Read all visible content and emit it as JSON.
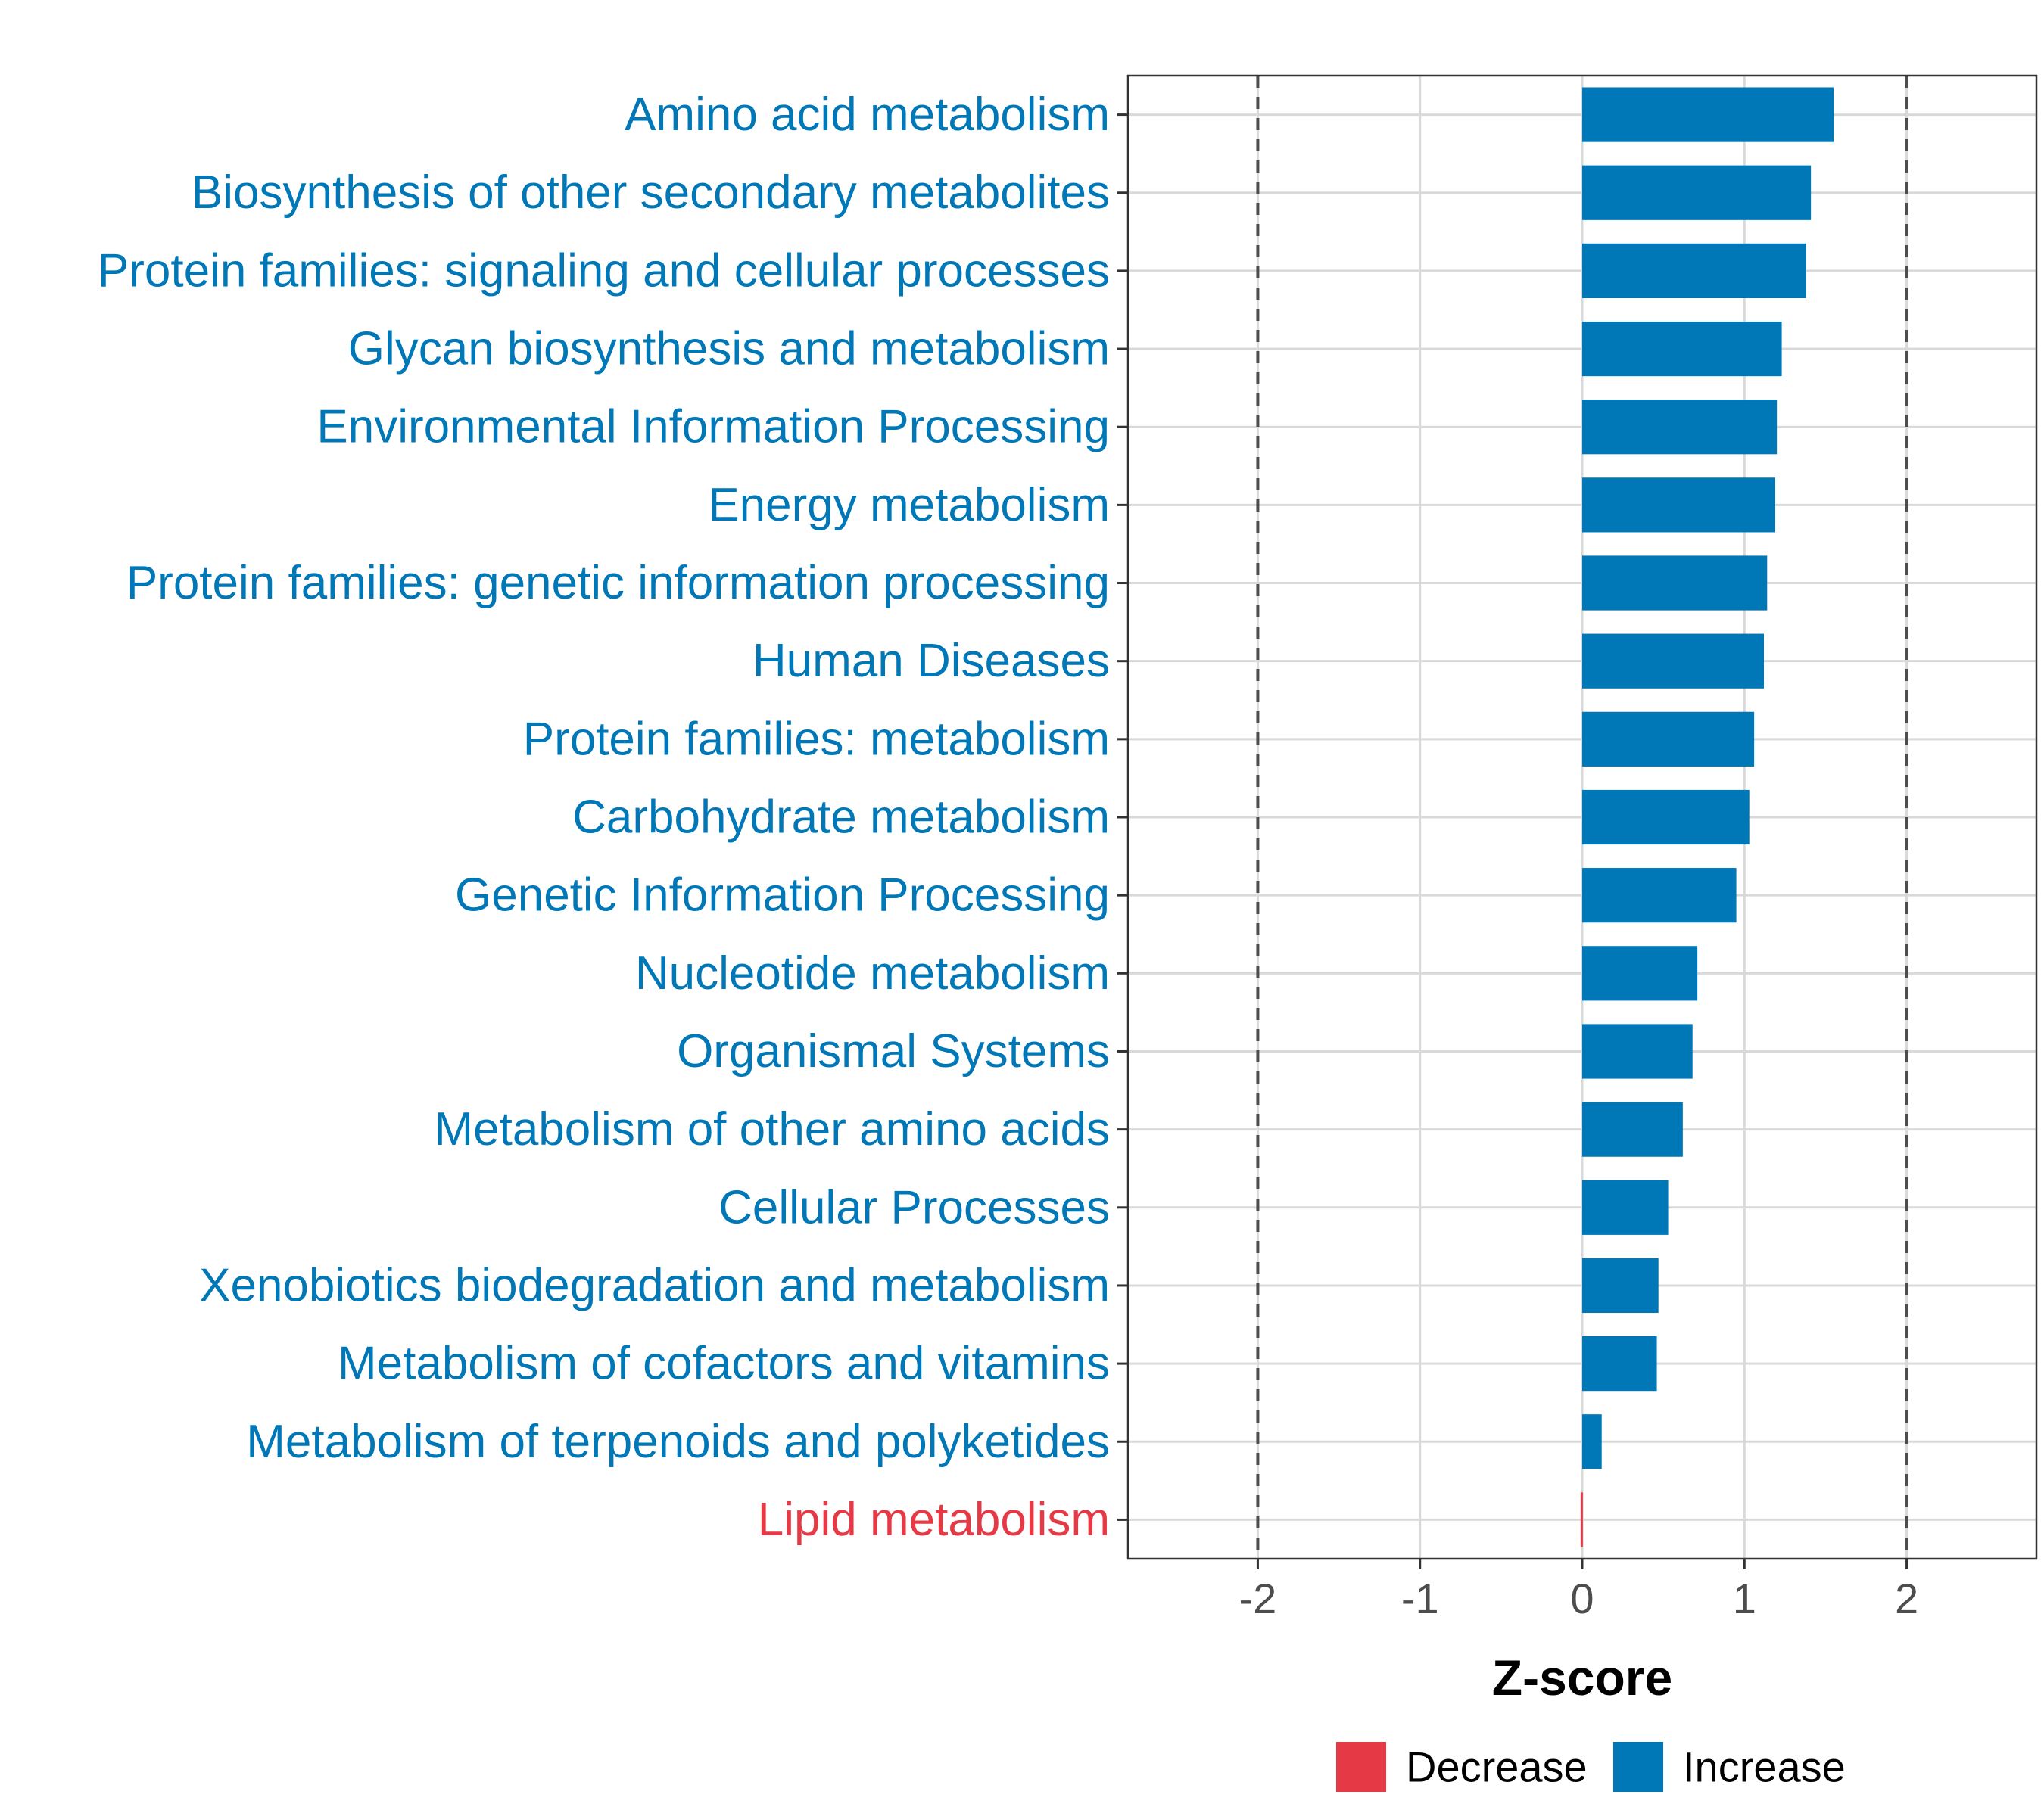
{
  "chart_data": {
    "type": "bar",
    "orientation": "horizontal",
    "categories": [
      "Amino acid metabolism",
      "Biosynthesis of other secondary metabolites",
      "Protein families: signaling and cellular processes",
      "Glycan biosynthesis and metabolism",
      "Environmental Information Processing",
      "Energy metabolism",
      "Protein families: genetic information processing",
      "Human Diseases",
      "Protein families: metabolism",
      "Carbohydrate metabolism",
      "Genetic Information Processing",
      "Nucleotide metabolism",
      "Organismal Systems",
      "Metabolism of other amino acids",
      "Cellular Processes",
      "Xenobiotics biodegradation and metabolism",
      "Metabolism of cofactors and vitamins",
      "Metabolism of terpenoids and polyketides",
      "Lipid metabolism"
    ],
    "values": [
      1.55,
      1.41,
      1.38,
      1.23,
      1.2,
      1.19,
      1.14,
      1.12,
      1.06,
      1.03,
      0.95,
      0.71,
      0.68,
      0.62,
      0.53,
      0.47,
      0.46,
      0.12,
      -0.01
    ],
    "direction": [
      "Increase",
      "Increase",
      "Increase",
      "Increase",
      "Increase",
      "Increase",
      "Increase",
      "Increase",
      "Increase",
      "Increase",
      "Increase",
      "Increase",
      "Increase",
      "Increase",
      "Increase",
      "Increase",
      "Increase",
      "Increase",
      "Decrease"
    ],
    "xlabel": "Z-score",
    "ylabel": "",
    "xlim": [
      -2.8,
      2.8
    ],
    "xticks": [
      -2,
      -1,
      0,
      1,
      2
    ],
    "xtick_labels": [
      "-2",
      "-1",
      "0",
      "1",
      "2"
    ],
    "reference_lines": [
      -2,
      2
    ],
    "grid": true,
    "legend": {
      "placement": "bottom",
      "entries": [
        {
          "label": "Decrease",
          "color": "#e63946"
        },
        {
          "label": "Increase",
          "color": "#0077b6"
        }
      ]
    },
    "colors": {
      "Increase": "#0077b6",
      "Decrease": "#e63946"
    }
  }
}
